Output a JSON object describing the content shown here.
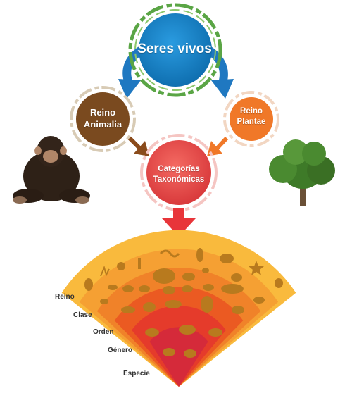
{
  "nodes": {
    "root": "Seres vivos",
    "animalia": [
      "Reino",
      "Animalia"
    ],
    "plantae": [
      "Reino",
      "Plantae"
    ],
    "categories": [
      "Categorías",
      "Taxonómicas"
    ]
  },
  "levels": [
    "Reino",
    "Clase",
    "Orden",
    "Género",
    "Especie"
  ],
  "colors": {
    "root": "#1a86c8",
    "root_ring": "#5aa545",
    "blue_arrow": "#1f78c1",
    "animalia": "#7a4a1f",
    "plantae": "#f07828",
    "categories": "#ea4a4a",
    "red_arrow": "#e8353a",
    "band_1": "#f9ba3d",
    "band_2": "#f5a033",
    "band_3": "#f08229",
    "band_4": "#eb5a22",
    "band_5": "#e53b2b",
    "band_6": "#d52a3a",
    "silhouettes": "#b87a1e"
  }
}
